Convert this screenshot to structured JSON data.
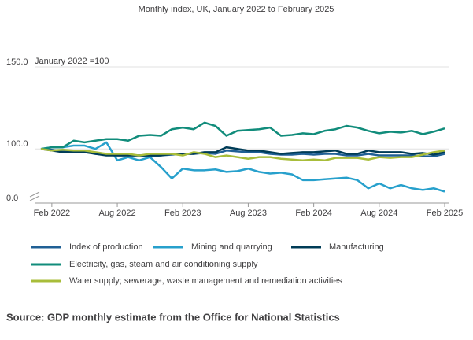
{
  "chart_data": {
    "type": "line",
    "subtitle": "Monthly index, UK, January 2022 to February 2025",
    "y_axis_label": "January 2022 =100",
    "categories": [
      null,
      "Feb 2022",
      null,
      null,
      null,
      null,
      null,
      "Aug 2022",
      null,
      null,
      null,
      null,
      null,
      "Feb 2023",
      null,
      null,
      null,
      null,
      null,
      "Aug 2023",
      null,
      null,
      null,
      null,
      null,
      "Feb 2024",
      null,
      null,
      null,
      null,
      null,
      "Aug 2024",
      null,
      null,
      null,
      null,
      null,
      "Feb 2025"
    ],
    "series": [
      {
        "name": "Index of production",
        "color": "#206095",
        "values": [
          100,
          99.5,
          98.5,
          99,
          98.5,
          97,
          96.5,
          96,
          96,
          96,
          95.5,
          96,
          96.5,
          97,
          97,
          97.5,
          97,
          99,
          98.5,
          98,
          98,
          97,
          96.5,
          96.5,
          97,
          96.5,
          97,
          97,
          96,
          96,
          97,
          96,
          96,
          96,
          96,
          95.5,
          95.5,
          97
        ]
      },
      {
        "name": "Mining and quarrying",
        "color": "#27a0cc",
        "values": [
          100,
          101,
          101,
          102,
          102,
          100,
          104,
          93,
          95,
          93,
          95,
          89,
          82,
          88,
          87,
          87,
          87.5,
          86,
          86.5,
          88,
          86,
          85,
          85.5,
          84.5,
          81,
          81,
          81.5,
          82,
          82.5,
          81,
          76,
          79,
          76,
          78,
          76,
          75,
          76,
          74
        ]
      },
      {
        "name": "Manufacturing",
        "color": "#003c57",
        "values": [
          100,
          99,
          98,
          98,
          98,
          97,
          96,
          96,
          96,
          96,
          96,
          96,
          97,
          97,
          97,
          98,
          98,
          101,
          100,
          99,
          99,
          98,
          97,
          97.5,
          98,
          98,
          98.5,
          99,
          97,
          97,
          99,
          98,
          98,
          98,
          97,
          97.5,
          96.5,
          98
        ]
      },
      {
        "name": "Electricity, gas, steam and air conditioning supply",
        "color": "#118c7b",
        "values": [
          100,
          101,
          101,
          105,
          104,
          105,
          106,
          106,
          105,
          108,
          108.5,
          108,
          112,
          113,
          112,
          116,
          114,
          108,
          111,
          111.5,
          112,
          113,
          108,
          108.5,
          109.5,
          109,
          111,
          112,
          114,
          113,
          111,
          109.5,
          110.5,
          110,
          111,
          109,
          110.5,
          112.5
        ]
      },
      {
        "name": "Water supply; sewerage, waste management and remediation activities",
        "color": "#a8bd3a",
        "values": [
          100,
          99,
          99.5,
          99,
          99,
          98,
          97,
          97,
          97,
          96,
          97,
          97,
          97,
          96,
          98,
          97,
          95,
          96,
          95,
          94,
          95,
          95,
          94,
          93.5,
          93,
          93.5,
          93,
          94.5,
          94.5,
          94.5,
          93.5,
          95,
          94.5,
          95,
          95,
          96.5,
          98,
          99
        ]
      }
    ],
    "ylim": [
      0,
      150
    ],
    "ybreak": [
      0,
      67
    ],
    "yticks": [
      {
        "value": 0,
        "label": "0.0"
      },
      {
        "value": 100,
        "label": "100.0"
      },
      {
        "value": 150,
        "label": "150.0"
      }
    ],
    "source": "Source: GDP monthly estimate from the Office for National Statistics"
  }
}
